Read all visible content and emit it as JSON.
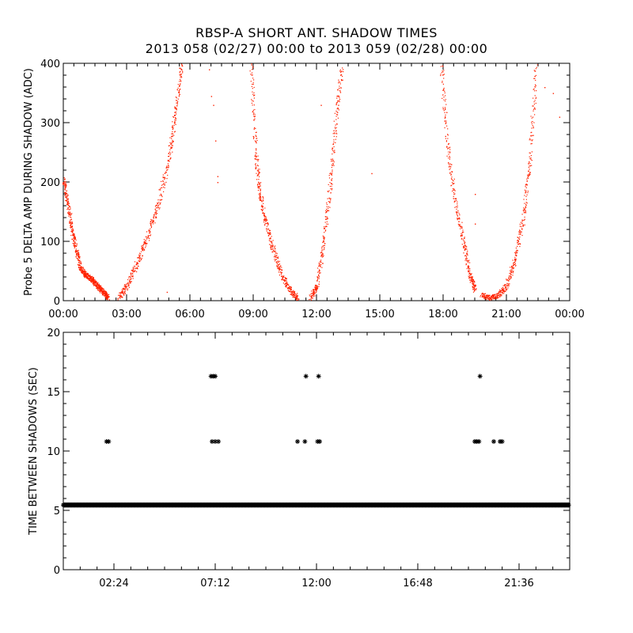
{
  "title": "RBSP-A SHORT ANT. SHADOW TIMES",
  "subtitle": "2013 058 (02/27) 00:00 to 2013 059 (02/28) 00:00",
  "chart_data": [
    {
      "type": "scatter",
      "ylabel": "Probe 5 DELTA AMP DURING SHADOW (ADC)",
      "xlabel": "",
      "xlim": [
        0,
        24
      ],
      "ylim": [
        0,
        400
      ],
      "color": "#ff2200",
      "xtick_values": [
        0,
        3,
        6,
        9,
        12,
        15,
        18,
        21,
        24
      ],
      "xtick_labels": [
        "00:00",
        "03:00",
        "06:00",
        "09:00",
        "12:00",
        "15:00",
        "18:00",
        "21:00",
        "00:00"
      ],
      "ytick_values": [
        0,
        100,
        200,
        300,
        400
      ],
      "ytick_labels": [
        "0",
        "100",
        "200",
        "300",
        "400"
      ],
      "curve_segments": [
        {
          "x": [
            0.0,
            0.2,
            0.4,
            0.6,
            0.8,
            1.0,
            1.2,
            1.4,
            1.6,
            1.8,
            2.0,
            2.1
          ],
          "y": [
            205,
            165,
            120,
            85,
            55,
            45,
            40,
            35,
            25,
            18,
            10,
            5
          ]
        },
        {
          "x": [
            2.6,
            3.0,
            3.5,
            4.0,
            4.5,
            5.0,
            5.3,
            5.6
          ],
          "y": [
            5,
            25,
            65,
            110,
            165,
            240,
            320,
            400
          ]
        },
        {
          "x": [
            8.9,
            9.1,
            9.3,
            9.6,
            10.0,
            10.4,
            10.8,
            11.1
          ],
          "y": [
            400,
            250,
            180,
            130,
            80,
            40,
            15,
            5
          ]
        },
        {
          "x": [
            11.7,
            12.0,
            12.3,
            12.6,
            12.9,
            13.2
          ],
          "y": [
            5,
            25,
            90,
            180,
            300,
            400
          ]
        },
        {
          "x": [
            17.9,
            18.2,
            18.6,
            19.0,
            19.3,
            19.5
          ],
          "y": [
            400,
            260,
            160,
            90,
            40,
            20
          ]
        },
        {
          "x": [
            19.8,
            20.2,
            20.6,
            21.0,
            21.4,
            21.8,
            22.1,
            22.4
          ],
          "y": [
            10,
            5,
            10,
            25,
            70,
            140,
            240,
            400
          ]
        }
      ],
      "isolated_points": [
        {
          "x": 7.0,
          "y": 345
        },
        {
          "x": 7.1,
          "y": 330
        },
        {
          "x": 7.2,
          "y": 270
        },
        {
          "x": 7.3,
          "y": 210
        },
        {
          "x": 7.3,
          "y": 200
        },
        {
          "x": 6.9,
          "y": 390
        },
        {
          "x": 14.6,
          "y": 215
        },
        {
          "x": 19.5,
          "y": 180
        },
        {
          "x": 19.5,
          "y": 130
        },
        {
          "x": 22.8,
          "y": 360
        },
        {
          "x": 23.2,
          "y": 350
        },
        {
          "x": 23.5,
          "y": 310
        },
        {
          "x": 12.2,
          "y": 330
        },
        {
          "x": 4.9,
          "y": 15
        }
      ]
    },
    {
      "type": "scatter",
      "ylabel": "TIME BETWEEN SHADOWS (SEC)",
      "xlabel": "",
      "xlim": [
        0,
        24
      ],
      "ylim": [
        0,
        20
      ],
      "color": "#000000",
      "marker": "*",
      "xtick_values": [
        2.4,
        7.2,
        12.0,
        16.8,
        21.6
      ],
      "xtick_labels": [
        "02:24",
        "07:12",
        "12:00",
        "16:48",
        "21:36"
      ],
      "ytick_values": [
        0,
        5,
        10,
        15,
        20
      ],
      "ytick_labels": [
        "0",
        "5",
        "10",
        "15",
        "20"
      ],
      "baseline": {
        "x_start": 0.0,
        "x_end": 24.0,
        "y": 5.45
      },
      "points": [
        {
          "x": 2.05,
          "y": 10.8
        },
        {
          "x": 2.15,
          "y": 10.8
        },
        {
          "x": 7.0,
          "y": 16.3
        },
        {
          "x": 7.1,
          "y": 16.3
        },
        {
          "x": 7.2,
          "y": 16.3
        },
        {
          "x": 7.05,
          "y": 10.8
        },
        {
          "x": 7.2,
          "y": 10.8
        },
        {
          "x": 7.35,
          "y": 10.8
        },
        {
          "x": 11.1,
          "y": 10.8
        },
        {
          "x": 11.45,
          "y": 10.8
        },
        {
          "x": 11.5,
          "y": 16.3
        },
        {
          "x": 12.1,
          "y": 16.3
        },
        {
          "x": 12.05,
          "y": 10.8
        },
        {
          "x": 12.15,
          "y": 10.8
        },
        {
          "x": 19.5,
          "y": 10.8
        },
        {
          "x": 19.6,
          "y": 10.8
        },
        {
          "x": 19.7,
          "y": 10.8
        },
        {
          "x": 19.75,
          "y": 16.3
        },
        {
          "x": 20.4,
          "y": 10.8
        },
        {
          "x": 20.7,
          "y": 10.8
        },
        {
          "x": 20.8,
          "y": 10.8
        }
      ]
    }
  ]
}
